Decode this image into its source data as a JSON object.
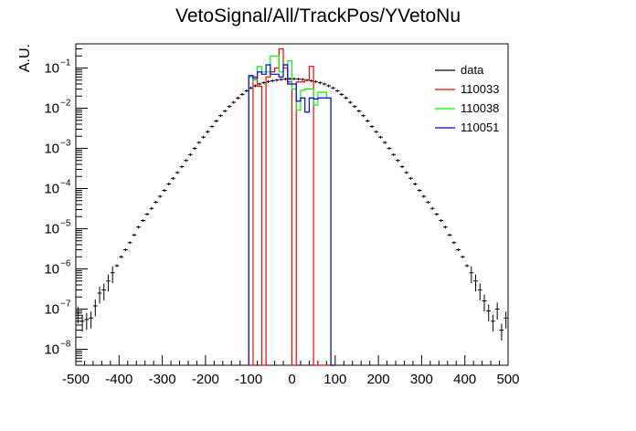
{
  "chart_data": {
    "type": "line",
    "title": "VetoSignal/All/TrackPos/YVetoNu",
    "ylabel": "A.U.",
    "xlabel": "",
    "xlim": [
      -500,
      500
    ],
    "ylim": [
      4e-09,
      0.4
    ],
    "yscale": "log",
    "x_ticks": [
      -500,
      -400,
      -300,
      -200,
      -100,
      0,
      100,
      200,
      300,
      400,
      500
    ],
    "y_ticks": [
      {
        "value": 1e-08,
        "label": "10",
        "exp": "−8"
      },
      {
        "value": 1e-07,
        "label": "10",
        "exp": "−7"
      },
      {
        "value": 1e-06,
        "label": "10",
        "exp": "−6"
      },
      {
        "value": 1e-05,
        "label": "10",
        "exp": "−5"
      },
      {
        "value": 0.0001,
        "label": "10",
        "exp": "−4"
      },
      {
        "value": 0.001,
        "label": "10",
        "exp": "−3"
      },
      {
        "value": 0.01,
        "label": "10",
        "exp": "−2"
      },
      {
        "value": 0.1,
        "label": "10",
        "exp": "−1"
      }
    ],
    "legend_position": "top-right",
    "series": [
      {
        "name": "data",
        "color": "#000000",
        "style": "points-errorbars",
        "bin_width": 10,
        "x": [
          -495,
          -485,
          -475,
          -465,
          -455,
          -445,
          -435,
          -425,
          -415,
          -405,
          -395,
          -385,
          -375,
          -365,
          -355,
          -345,
          -335,
          -325,
          -315,
          -305,
          -295,
          -285,
          -275,
          -265,
          -255,
          -245,
          -235,
          -225,
          -215,
          -205,
          -195,
          -185,
          -175,
          -165,
          -155,
          -145,
          -135,
          -125,
          -115,
          -105,
          -95,
          -85,
          -75,
          -65,
          -55,
          -45,
          -35,
          -25,
          -15,
          -5,
          5,
          15,
          25,
          35,
          45,
          55,
          65,
          75,
          85,
          95,
          105,
          115,
          125,
          135,
          145,
          155,
          165,
          175,
          185,
          195,
          205,
          215,
          225,
          235,
          245,
          255,
          265,
          275,
          285,
          295,
          305,
          315,
          325,
          335,
          345,
          355,
          365,
          375,
          385,
          395,
          405,
          415,
          425,
          435,
          445,
          455,
          465,
          475,
          485,
          495
        ],
        "y": [
          8e-08,
          5e-08,
          5.5e-08,
          6e-08,
          1.2e-07,
          2.5e-07,
          3e-07,
          5e-07,
          8e-07,
          1.2e-06,
          2e-06,
          3e-06,
          4.5e-06,
          7e-06,
          1.1e-05,
          1.6e-05,
          2.3e-05,
          3.2e-05,
          4.6e-05,
          6.4e-05,
          9e-05,
          0.00013,
          0.00018,
          0.00025,
          0.00035,
          0.0005,
          0.0007,
          0.001,
          0.0014,
          0.0019,
          0.0026,
          0.0035,
          0.0048,
          0.0065,
          0.0085,
          0.011,
          0.014,
          0.018,
          0.022,
          0.027,
          0.032,
          0.036,
          0.04,
          0.043,
          0.046,
          0.048,
          0.05,
          0.052,
          0.053,
          0.054,
          0.054,
          0.053,
          0.052,
          0.05,
          0.048,
          0.046,
          0.043,
          0.04,
          0.036,
          0.032,
          0.027,
          0.022,
          0.018,
          0.014,
          0.011,
          0.0085,
          0.0065,
          0.0048,
          0.0035,
          0.0026,
          0.0019,
          0.0014,
          0.001,
          0.0007,
          0.0005,
          0.00035,
          0.00025,
          0.00018,
          0.00013,
          9e-05,
          6.4e-05,
          4.6e-05,
          3.2e-05,
          2.3e-05,
          1.6e-05,
          1.1e-05,
          7e-06,
          4.5e-06,
          3e-06,
          2e-06,
          1.2e-06,
          8e-07,
          5e-07,
          3e-07,
          1.6e-07,
          9e-08,
          5e-08,
          1e-07,
          3e-08,
          6e-08
        ]
      },
      {
        "name": "110033",
        "color": "#ff0000",
        "style": "histogram-step",
        "edges": [
          -100,
          -90,
          -80,
          -70,
          -60,
          -50,
          -40,
          -30,
          -20,
          -10,
          0,
          10,
          20,
          30,
          40,
          50,
          60,
          70,
          80,
          90,
          100
        ],
        "values": [
          0,
          0.06,
          0.035,
          0,
          0.06,
          0.08,
          0.1,
          0.3,
          0.1,
          0.045,
          0,
          0.045,
          0.045,
          0.05,
          0.11,
          0,
          0,
          0,
          0,
          0
        ]
      },
      {
        "name": "110038",
        "color": "#00ff00",
        "style": "histogram-step",
        "edges": [
          -100,
          -90,
          -80,
          -70,
          -60,
          -50,
          -40,
          -30,
          -20,
          -10,
          0,
          10,
          20,
          30,
          40,
          50,
          60,
          70,
          80,
          90,
          100
        ],
        "values": [
          0.06,
          0.05,
          0.11,
          0.08,
          0.08,
          0.2,
          0.2,
          0.08,
          0.12,
          0.15,
          0.03,
          0.009,
          0.028,
          0.03,
          0.03,
          0.012,
          0.025,
          0.025,
          0.018,
          0
        ]
      },
      {
        "name": "110051",
        "color": "#0000ff",
        "style": "histogram-step",
        "edges": [
          -100,
          -90,
          -80,
          -70,
          -60,
          -50,
          -40,
          -30,
          -20,
          -10,
          0,
          10,
          20,
          30,
          40,
          50,
          60,
          70,
          80,
          90,
          100
        ],
        "values": [
          0.065,
          0.055,
          0.08,
          0.07,
          0.12,
          0.07,
          0.07,
          0.06,
          0.12,
          0.04,
          0.04,
          0.015,
          0.018,
          0.008,
          0.018,
          0.017,
          0.018,
          0.018,
          0.018,
          0
        ]
      }
    ]
  }
}
